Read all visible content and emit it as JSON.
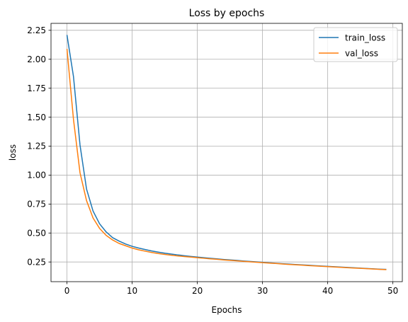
{
  "chart_data": {
    "type": "line",
    "title": "Loss by epochs",
    "xlabel": "Epochs",
    "ylabel": "loss",
    "xlim": [
      -2.45,
      51.45
    ],
    "ylim": [
      0.08,
      2.31
    ],
    "xticks": [
      0,
      10,
      20,
      30,
      40,
      50
    ],
    "yticks": [
      0.25,
      0.5,
      0.75,
      1.0,
      1.25,
      1.5,
      1.75,
      2.0,
      2.25
    ],
    "ytick_labels": [
      "0.25",
      "0.50",
      "0.75",
      "1.00",
      "1.25",
      "1.50",
      "1.75",
      "2.00",
      "2.25"
    ],
    "grid": true,
    "legend_position": "top-right",
    "x": [
      0,
      1,
      2,
      3,
      4,
      5,
      6,
      7,
      8,
      9,
      10,
      11,
      12,
      13,
      14,
      15,
      16,
      17,
      18,
      19,
      20,
      21,
      22,
      23,
      24,
      25,
      26,
      27,
      28,
      29,
      30,
      31,
      32,
      33,
      34,
      35,
      36,
      37,
      38,
      39,
      40,
      41,
      42,
      43,
      44,
      45,
      46,
      47,
      48,
      49
    ],
    "series": [
      {
        "name": "train_loss",
        "color": "#1f77b4",
        "values": [
          2.21,
          1.85,
          1.26,
          0.88,
          0.69,
          0.58,
          0.51,
          0.46,
          0.43,
          0.405,
          0.385,
          0.37,
          0.357,
          0.345,
          0.335,
          0.326,
          0.318,
          0.311,
          0.304,
          0.298,
          0.292,
          0.287,
          0.282,
          0.277,
          0.272,
          0.268,
          0.264,
          0.259,
          0.255,
          0.251,
          0.247,
          0.243,
          0.239,
          0.235,
          0.232,
          0.228,
          0.225,
          0.222,
          0.218,
          0.215,
          0.212,
          0.209,
          0.206,
          0.203,
          0.2,
          0.197,
          0.194,
          0.191,
          0.188,
          0.186
        ]
      },
      {
        "name": "val_loss",
        "color": "#ff7f0e",
        "values": [
          2.09,
          1.48,
          1.02,
          0.78,
          0.63,
          0.54,
          0.48,
          0.44,
          0.41,
          0.39,
          0.37,
          0.355,
          0.343,
          0.332,
          0.323,
          0.315,
          0.308,
          0.302,
          0.297,
          0.292,
          0.287,
          0.282,
          0.277,
          0.273,
          0.268,
          0.264,
          0.26,
          0.256,
          0.252,
          0.248,
          0.244,
          0.24,
          0.237,
          0.233,
          0.229,
          0.226,
          0.223,
          0.219,
          0.216,
          0.213,
          0.21,
          0.207,
          0.204,
          0.201,
          0.198,
          0.195,
          0.192,
          0.189,
          0.186,
          0.184
        ]
      }
    ]
  }
}
